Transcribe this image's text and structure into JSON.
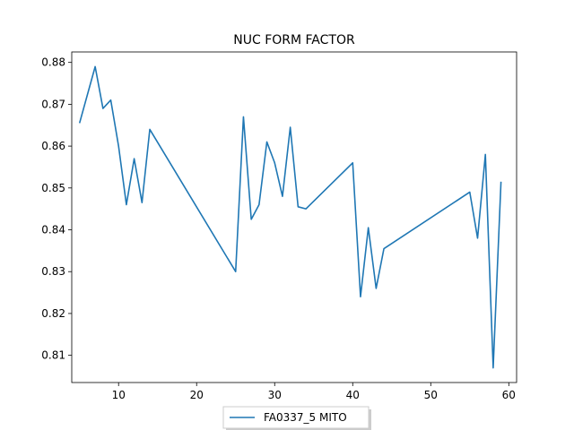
{
  "chart_data": {
    "type": "line",
    "title": "NUC FORM FACTOR",
    "xlabel": "",
    "ylabel": "",
    "xlim": [
      4,
      61
    ],
    "ylim": [
      0.8035,
      0.8825
    ],
    "xticks": [
      10,
      20,
      30,
      40,
      50,
      60
    ],
    "yticks": [
      0.81,
      0.82,
      0.83,
      0.84,
      0.85,
      0.86,
      0.87,
      0.88
    ],
    "xtick_labels": [
      "10",
      "20",
      "30",
      "40",
      "50",
      "60"
    ],
    "ytick_labels": [
      "0.81",
      "0.82",
      "0.83",
      "0.84",
      "0.85",
      "0.86",
      "0.87",
      "0.88"
    ],
    "grid": false,
    "legend_position": "bottom-center",
    "series": [
      {
        "name": "FA0337_5 MITO",
        "color": "#1f77b4",
        "x": [
          5,
          7,
          8,
          9,
          10,
          11,
          12,
          13,
          14,
          25,
          26,
          27,
          28,
          29,
          30,
          31,
          32,
          33,
          34,
          40,
          41,
          42,
          43,
          44,
          55,
          56,
          57,
          58,
          59
        ],
        "y": [
          0.8655,
          0.879,
          0.869,
          0.871,
          0.86,
          0.846,
          0.857,
          0.8465,
          0.864,
          0.83,
          0.867,
          0.8425,
          0.846,
          0.861,
          0.856,
          0.848,
          0.8645,
          0.8455,
          0.845,
          0.856,
          0.824,
          0.8405,
          0.826,
          0.8355,
          0.849,
          0.838,
          0.858,
          0.807,
          0.8515
        ]
      }
    ]
  }
}
